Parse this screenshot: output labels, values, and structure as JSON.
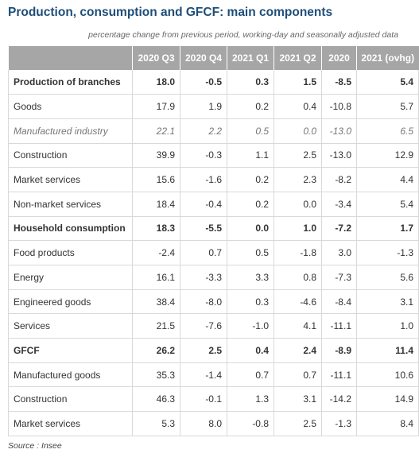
{
  "title": "Production, consumption and GFCF: main components",
  "subtitle": "percentage change from previous period, working-day and seasonally adjusted data",
  "source": "Source : Insee",
  "columns": [
    "",
    "2020 Q3",
    "2020 Q4",
    "2021 Q1",
    "2021 Q2",
    "2020",
    "2021 (ovhg)"
  ],
  "rows": [
    {
      "label": "Production of branches",
      "style": "bold",
      "values": [
        "18.0",
        "-0.5",
        "0.3",
        "1.5",
        "-8.5",
        "5.4"
      ]
    },
    {
      "label": "Goods",
      "style": "normal",
      "values": [
        "17.9",
        "1.9",
        "0.2",
        "0.4",
        "-10.8",
        "5.7"
      ]
    },
    {
      "label": "Manufactured industry",
      "style": "italic",
      "values": [
        "22.1",
        "2.2",
        "0.5",
        "0.0",
        "-13.0",
        "6.5"
      ]
    },
    {
      "label": "Construction",
      "style": "normal",
      "values": [
        "39.9",
        "-0.3",
        "1.1",
        "2.5",
        "-13.0",
        "12.9"
      ]
    },
    {
      "label": "Market services",
      "style": "normal",
      "values": [
        "15.6",
        "-1.6",
        "0.2",
        "2.3",
        "-8.2",
        "4.4"
      ]
    },
    {
      "label": "Non-market services",
      "style": "normal",
      "values": [
        "18.4",
        "-0.4",
        "0.2",
        "0.0",
        "-3.4",
        "5.4"
      ]
    },
    {
      "label": "Household consumption",
      "style": "bold",
      "values": [
        "18.3",
        "-5.5",
        "0.0",
        "1.0",
        "-7.2",
        "1.7"
      ]
    },
    {
      "label": "Food products",
      "style": "normal",
      "values": [
        "-2.4",
        "0.7",
        "0.5",
        "-1.8",
        "3.0",
        "-1.3"
      ]
    },
    {
      "label": "Energy",
      "style": "normal",
      "values": [
        "16.1",
        "-3.3",
        "3.3",
        "0.8",
        "-7.3",
        "5.6"
      ]
    },
    {
      "label": "Engineered goods",
      "style": "normal",
      "values": [
        "38.4",
        "-8.0",
        "0.3",
        "-4.6",
        "-8.4",
        "3.1"
      ]
    },
    {
      "label": "Services",
      "style": "normal",
      "values": [
        "21.5",
        "-7.6",
        "-1.0",
        "4.1",
        "-11.1",
        "1.0"
      ]
    },
    {
      "label": "GFCF",
      "style": "bold",
      "values": [
        "26.2",
        "2.5",
        "0.4",
        "2.4",
        "-8.9",
        "11.4"
      ]
    },
    {
      "label": "Manufactured goods",
      "style": "normal",
      "values": [
        "35.3",
        "-1.4",
        "0.7",
        "0.7",
        "-11.1",
        "10.6"
      ]
    },
    {
      "label": "Construction",
      "style": "normal",
      "values": [
        "46.3",
        "-0.1",
        "1.3",
        "3.1",
        "-14.2",
        "14.9"
      ]
    },
    {
      "label": "Market services",
      "style": "normal",
      "values": [
        "5.3",
        "8.0",
        "-0.8",
        "2.5",
        "-1.3",
        "8.4"
      ]
    }
  ],
  "colors": {
    "title": "#1f4e79",
    "header_bg": "#a6a6a6",
    "header_text": "#ffffff",
    "grid": "#d9d9d9"
  }
}
